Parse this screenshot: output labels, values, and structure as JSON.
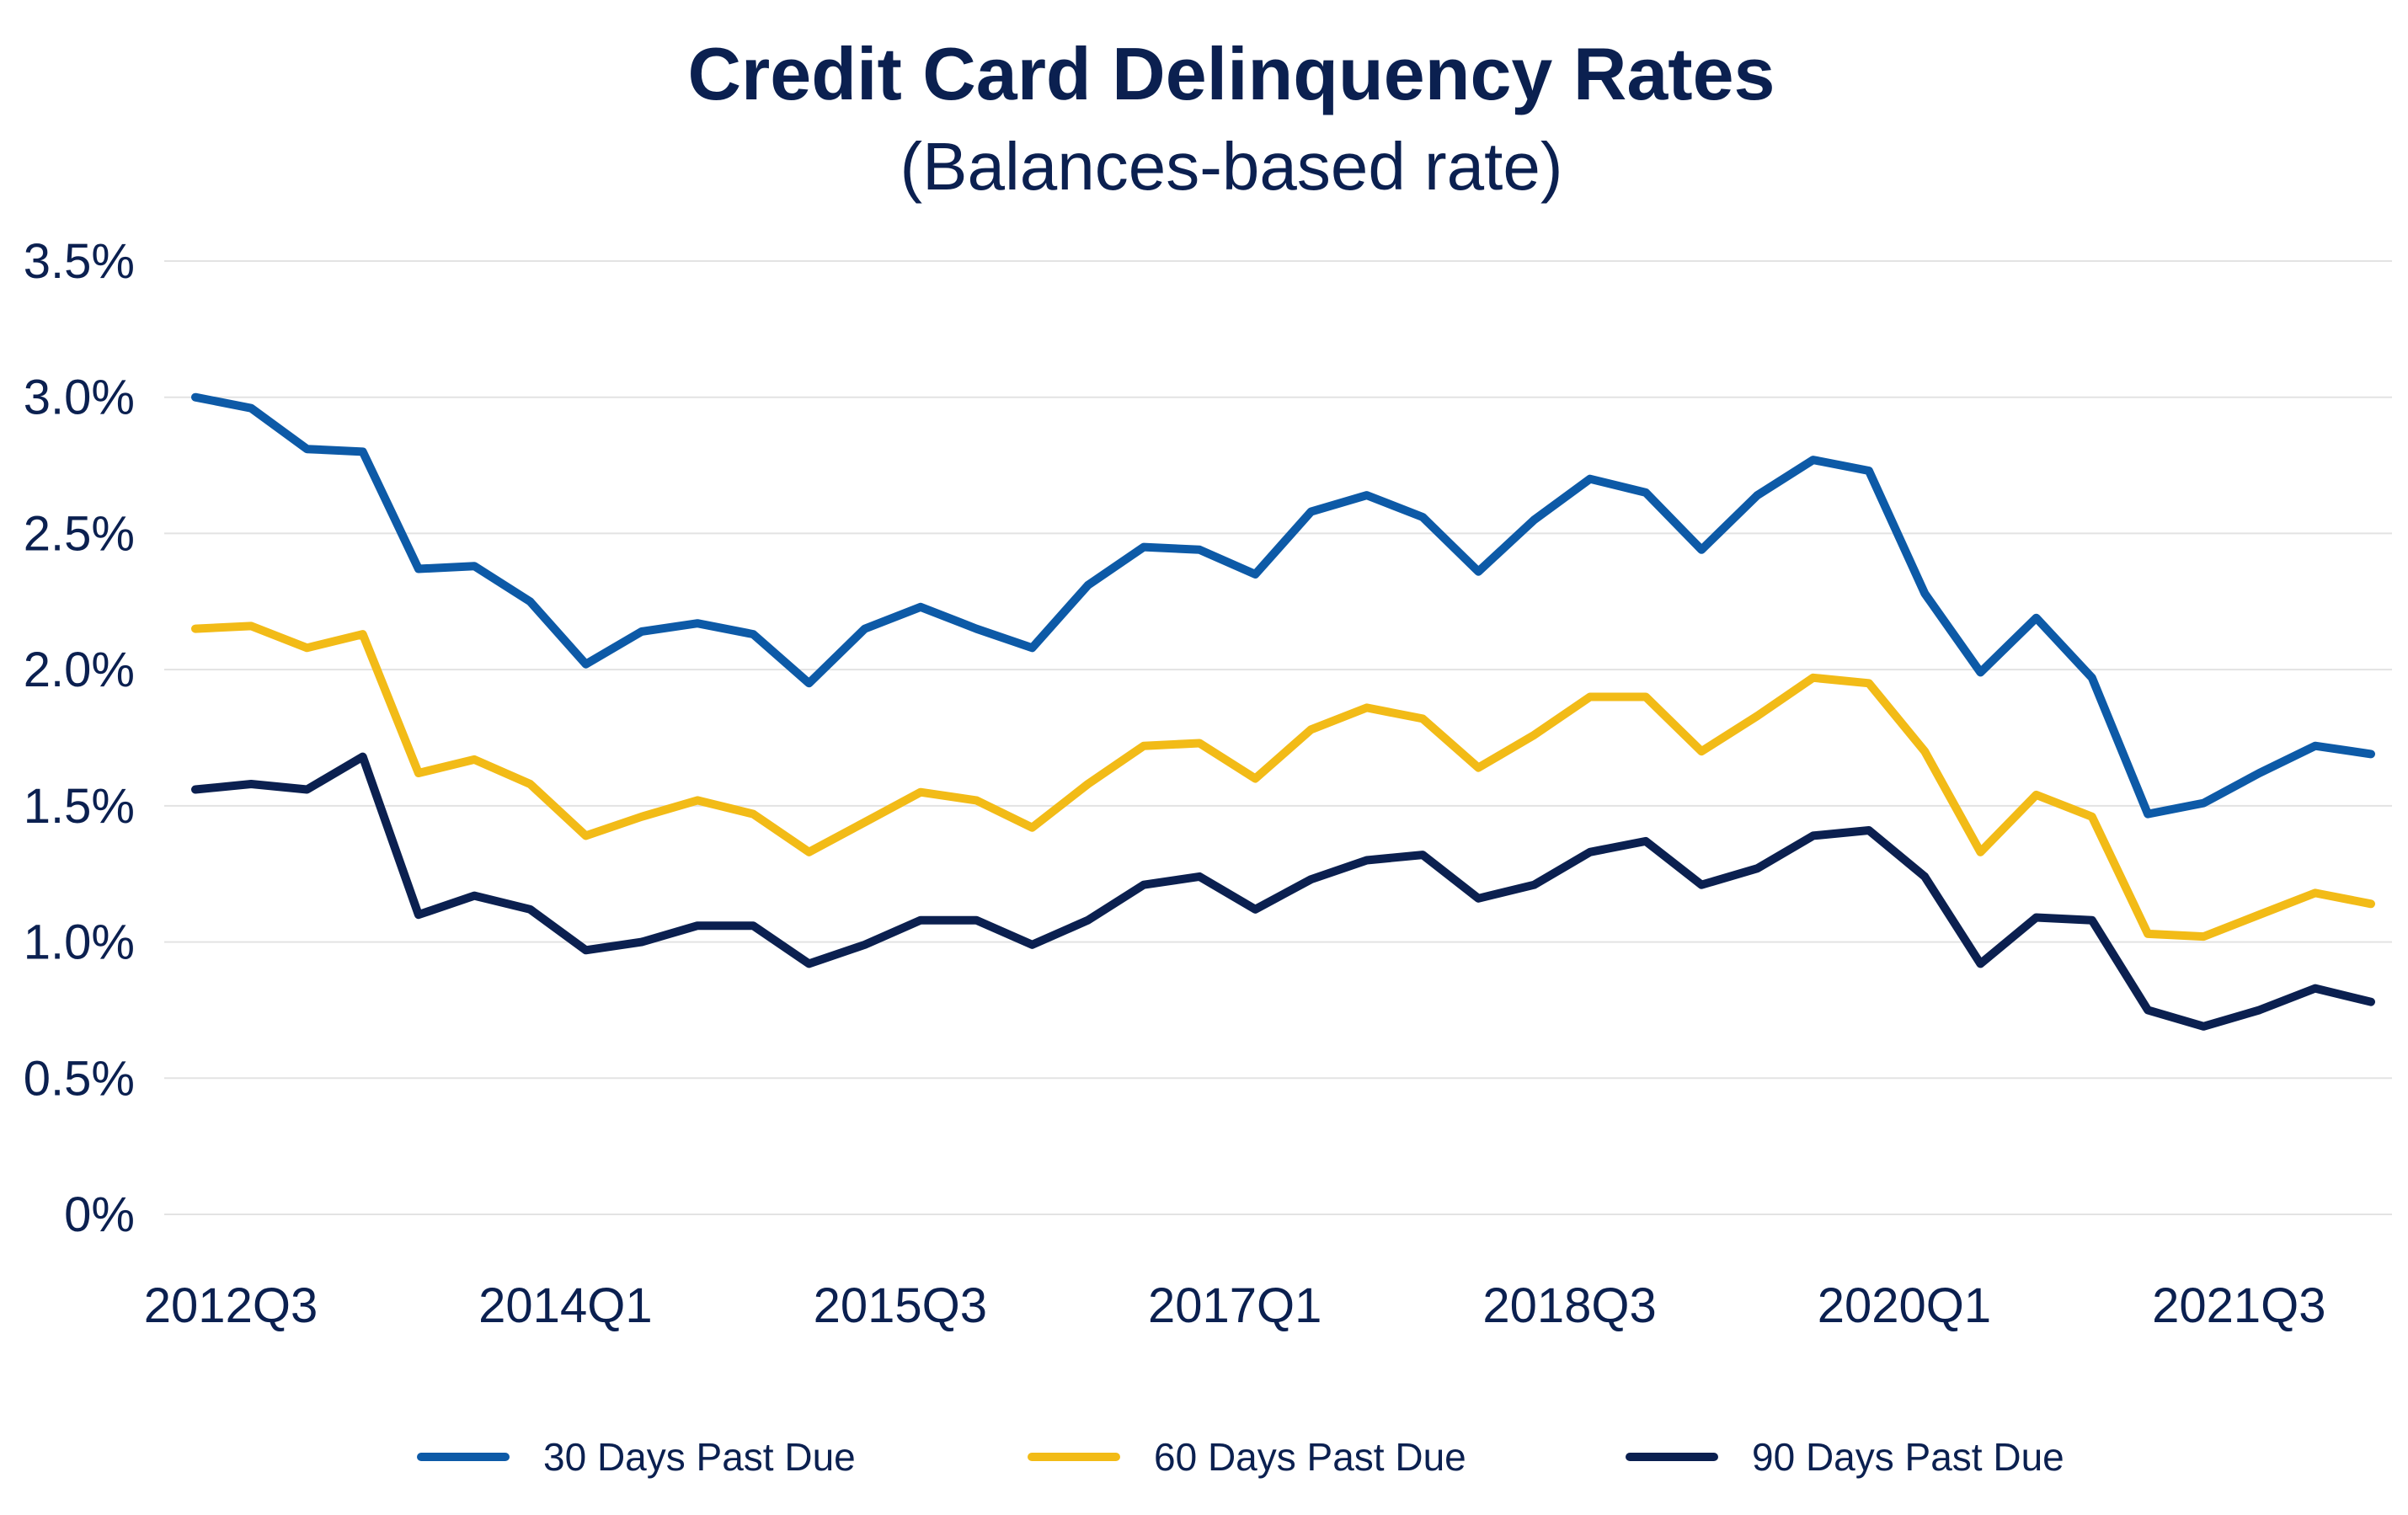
{
  "chart_data": {
    "type": "line",
    "title": "Credit Card Delinquency Rates",
    "subtitle": "(Balances-based rate)",
    "xlabel": "",
    "ylabel": "",
    "ylim": [
      0,
      3.5
    ],
    "yticks": [
      0,
      0.5,
      1.0,
      1.5,
      2.0,
      2.5,
      3.0,
      3.5
    ],
    "ytick_labels": [
      "0%",
      "0.5%",
      "1.0%",
      "1.5%",
      "2.0%",
      "2.5%",
      "3.0%",
      "3.5%"
    ],
    "x": [
      "2012Q3",
      "2012Q4",
      "2013Q1",
      "2013Q2",
      "2013Q3",
      "2013Q4",
      "2014Q1",
      "2014Q2",
      "2014Q3",
      "2014Q4",
      "2015Q1",
      "2015Q2",
      "2015Q3",
      "2015Q4",
      "2016Q1",
      "2016Q2",
      "2016Q3",
      "2016Q4",
      "2017Q1",
      "2017Q2",
      "2017Q3",
      "2017Q4",
      "2018Q1",
      "2018Q2",
      "2018Q3",
      "2018Q4",
      "2019Q1",
      "2019Q2",
      "2019Q3",
      "2019Q4",
      "2020Q1",
      "2020Q2",
      "2020Q3",
      "2020Q4",
      "2021Q1",
      "2021Q2",
      "2021Q3",
      "2021Q4",
      "2022Q1",
      "2022Q2"
    ],
    "xtick_labels": [
      "2012Q3",
      "2014Q1",
      "2015Q3",
      "2017Q1",
      "2018Q3",
      "2020Q1",
      "2021Q3"
    ],
    "grid": true,
    "legend_position": "bottom",
    "series": [
      {
        "name": "30 Days Past Due",
        "color": "#0d5aa7",
        "values": [
          3.0,
          2.96,
          2.81,
          2.8,
          2.37,
          2.38,
          2.25,
          2.02,
          2.14,
          2.17,
          2.13,
          1.95,
          2.15,
          2.23,
          2.15,
          2.08,
          2.31,
          2.45,
          2.44,
          2.35,
          2.58,
          2.64,
          2.56,
          2.36,
          2.55,
          2.7,
          2.65,
          2.44,
          2.64,
          2.77,
          2.73,
          2.28,
          1.99,
          2.19,
          1.97,
          1.47,
          1.51,
          1.62,
          1.72,
          1.69
        ]
      },
      {
        "name": "60 Days Past Due",
        "color": "#f2bb17",
        "values": [
          2.15,
          2.16,
          2.08,
          2.13,
          1.62,
          1.67,
          1.58,
          1.39,
          1.46,
          1.52,
          1.47,
          1.33,
          1.44,
          1.55,
          1.52,
          1.42,
          1.58,
          1.72,
          1.73,
          1.6,
          1.78,
          1.86,
          1.82,
          1.64,
          1.76,
          1.9,
          1.9,
          1.7,
          1.83,
          1.97,
          1.95,
          1.7,
          1.33,
          1.54,
          1.46,
          1.03,
          1.02,
          1.1,
          1.18,
          1.14
        ]
      },
      {
        "name": "90 Days Past Due",
        "color": "#0b2050",
        "values": [
          1.56,
          1.58,
          1.56,
          1.68,
          1.1,
          1.17,
          1.12,
          0.97,
          1.0,
          1.06,
          1.06,
          0.92,
          0.99,
          1.08,
          1.08,
          0.99,
          1.08,
          1.21,
          1.24,
          1.12,
          1.23,
          1.3,
          1.32,
          1.16,
          1.21,
          1.33,
          1.37,
          1.21,
          1.27,
          1.39,
          1.41,
          1.24,
          0.92,
          1.09,
          1.08,
          0.75,
          0.69,
          0.75,
          0.83,
          0.78
        ]
      }
    ]
  }
}
